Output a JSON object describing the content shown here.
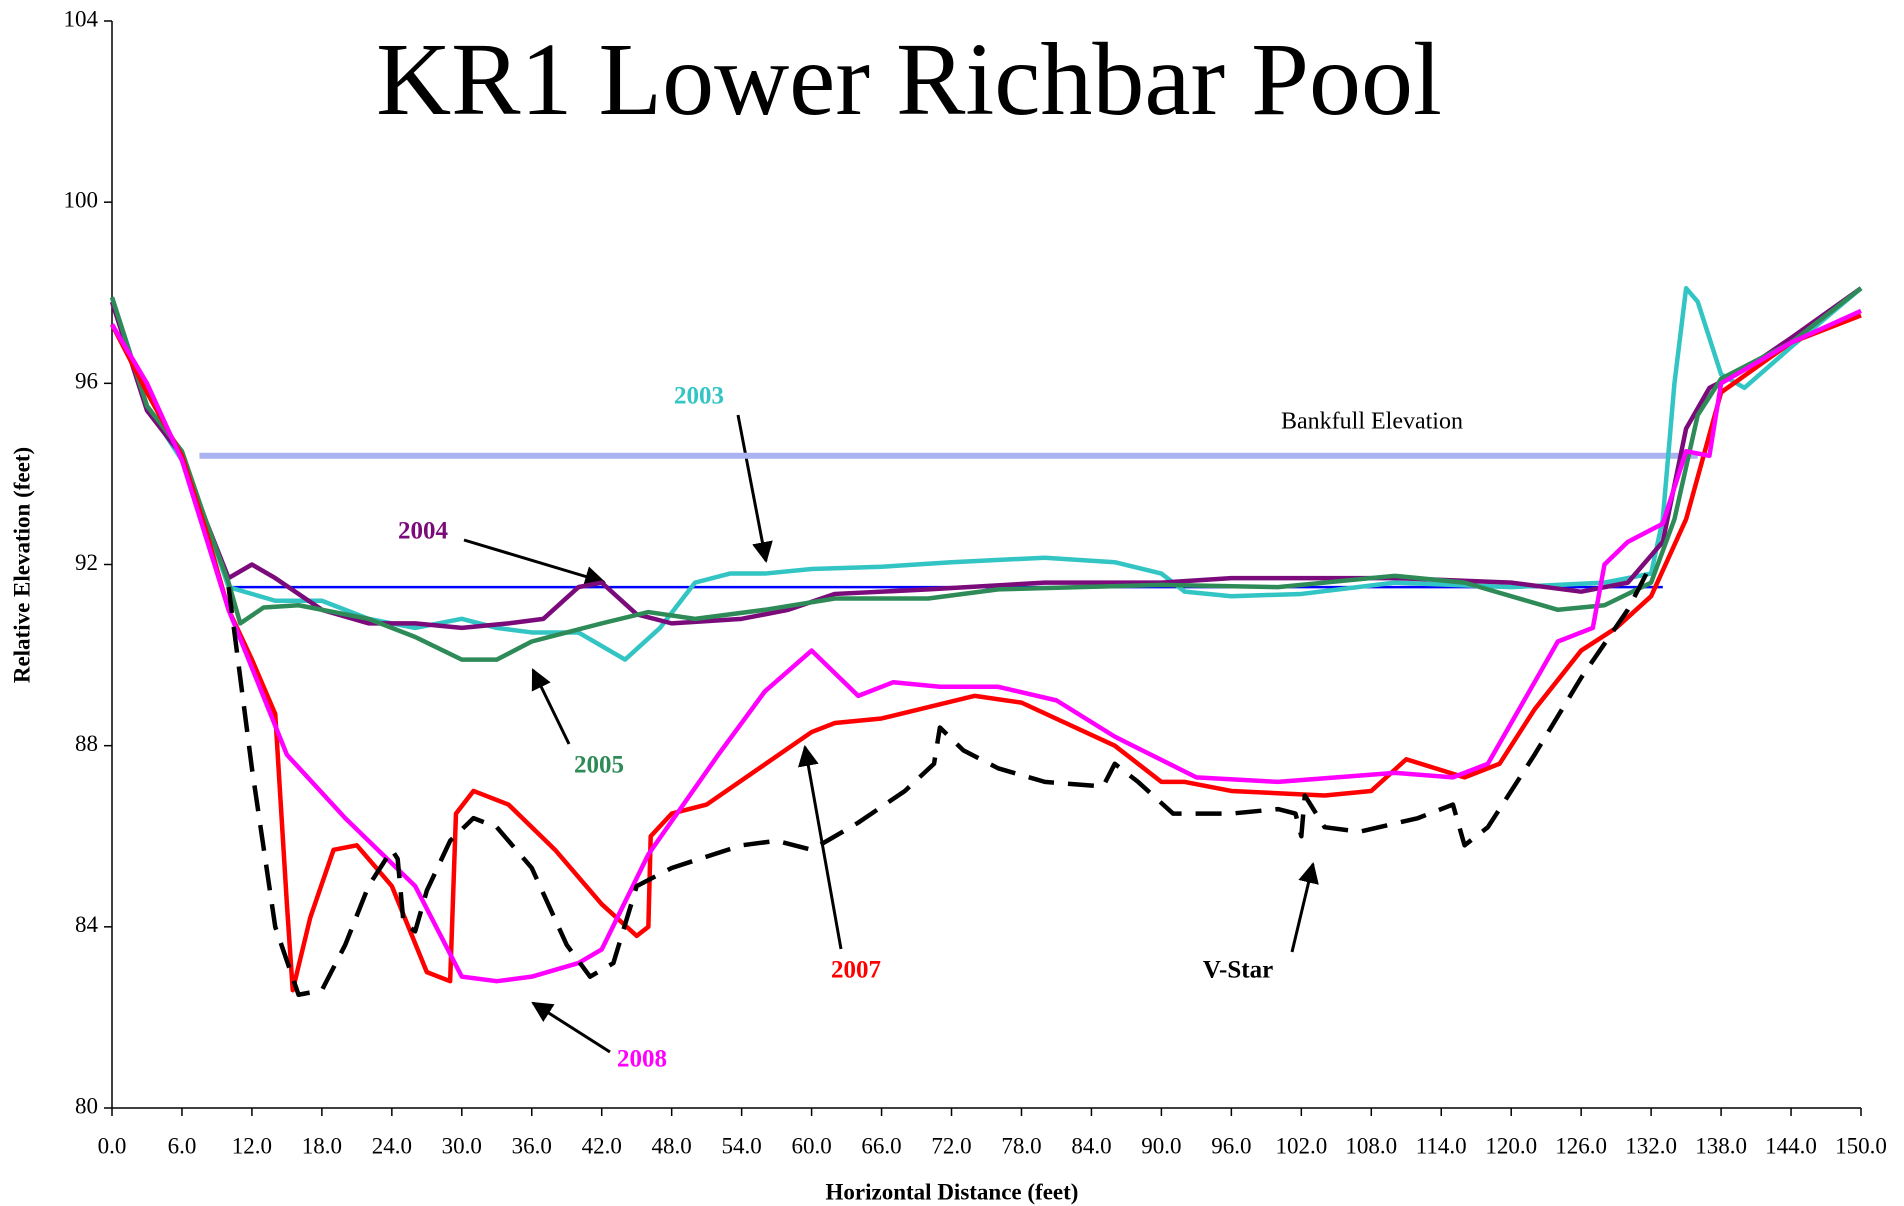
{
  "chart_data": {
    "type": "line",
    "title": "KR1 Lower Richbar Pool",
    "x_label": "Horizontal Distance (feet)",
    "y_label": "Relative Elevation (feet)",
    "xlim": [
      0,
      150
    ],
    "ylim": [
      80,
      104
    ],
    "xticks": [
      {
        "value": 0,
        "label": "0.0"
      },
      {
        "value": 6,
        "label": "6.0"
      },
      {
        "value": 12,
        "label": "12.0"
      },
      {
        "value": 18,
        "label": "18.0"
      },
      {
        "value": 24,
        "label": "24.0"
      },
      {
        "value": 30,
        "label": "30.0"
      },
      {
        "value": 36,
        "label": "36.0"
      },
      {
        "value": 42,
        "label": "42.0"
      },
      {
        "value": 48,
        "label": "48.0"
      },
      {
        "value": 54,
        "label": "54.0"
      },
      {
        "value": 60,
        "label": "60.0"
      },
      {
        "value": 66,
        "label": "66.0"
      },
      {
        "value": 72,
        "label": "72.0"
      },
      {
        "value": 78,
        "label": "78.0"
      },
      {
        "value": 84,
        "label": "84.0"
      },
      {
        "value": 90,
        "label": "90.0"
      },
      {
        "value": 96,
        "label": "96.0"
      },
      {
        "value": 102,
        "label": "102.0"
      },
      {
        "value": 108,
        "label": "108.0"
      },
      {
        "value": 114,
        "label": "114.0"
      },
      {
        "value": 120,
        "label": "120.0"
      },
      {
        "value": 126,
        "label": "126.0"
      },
      {
        "value": 132,
        "label": "132.0"
      },
      {
        "value": 138,
        "label": "138.0"
      },
      {
        "value": 144,
        "label": "144.0"
      },
      {
        "value": 150,
        "label": "150.0"
      }
    ],
    "yticks": [
      80,
      84,
      88,
      92,
      96,
      100,
      104
    ],
    "series": [
      {
        "name": "Bankfull Elevation",
        "color": "#aab2f0",
        "x": [
          7.5,
          136
        ],
        "values": [
          94.4,
          94.4
        ]
      },
      {
        "color": "#0000ff",
        "x": [
          10,
          133
        ],
        "values": [
          91.5,
          91.5
        ]
      },
      {
        "name": "2003",
        "color": "#33c4c4",
        "x": [
          0,
          3,
          6,
          8,
          10,
          14,
          18,
          22,
          26,
          30,
          33,
          36,
          40,
          44,
          47,
          50,
          53,
          56,
          60,
          66,
          72,
          80,
          86,
          90,
          92,
          96,
          102,
          110,
          120,
          128,
          132,
          133,
          134,
          135,
          136,
          138,
          140,
          144,
          150
        ],
        "values": [
          97.9,
          95.5,
          94.3,
          93,
          91.5,
          91.2,
          91.2,
          90.8,
          90.6,
          90.8,
          90.6,
          90.5,
          90.5,
          89.9,
          90.6,
          91.6,
          91.8,
          91.8,
          91.9,
          91.95,
          92.05,
          92.15,
          92.05,
          91.8,
          91.4,
          91.3,
          91.35,
          91.6,
          91.5,
          91.6,
          91.8,
          93,
          96,
          98.1,
          97.8,
          96.2,
          95.9,
          96.8,
          98.1
        ]
      },
      {
        "name": "2004",
        "color": "#7b0a7b",
        "x": [
          0,
          3,
          6,
          8,
          10,
          12,
          14,
          18,
          22,
          26,
          30,
          34,
          37,
          40,
          42,
          45,
          48,
          54,
          58,
          62,
          70,
          80,
          90,
          96,
          110,
          120,
          126,
          130,
          133,
          135,
          137,
          140,
          144,
          150
        ],
        "values": [
          97.8,
          95.4,
          94.4,
          93,
          91.7,
          92,
          91.7,
          91,
          90.7,
          90.7,
          90.6,
          90.7,
          90.8,
          91.5,
          91.6,
          90.9,
          90.7,
          90.8,
          91,
          91.35,
          91.45,
          91.6,
          91.6,
          91.7,
          91.7,
          91.6,
          91.4,
          91.6,
          92.5,
          95,
          95.9,
          96.3,
          97,
          98.1
        ]
      },
      {
        "name": "2005",
        "color": "#2e8b57",
        "x": [
          0,
          3,
          6,
          8,
          10,
          11,
          13,
          16,
          22,
          26,
          30,
          33,
          36,
          42,
          46,
          50,
          56,
          62,
          70,
          76,
          90,
          100,
          110,
          116,
          124,
          128,
          132,
          134,
          136,
          138,
          144,
          150
        ],
        "values": [
          97.9,
          95.5,
          94.5,
          93,
          91.6,
          90.7,
          91.05,
          91.1,
          90.8,
          90.4,
          89.9,
          89.9,
          90.3,
          90.7,
          90.95,
          90.8,
          91,
          91.25,
          91.25,
          91.45,
          91.55,
          91.5,
          91.75,
          91.6,
          91,
          91.1,
          91.6,
          93,
          95.3,
          96.1,
          96.9,
          98.1
        ]
      },
      {
        "name": "2007",
        "color": "#ff0000",
        "x": [
          0,
          3,
          6,
          8,
          10,
          12,
          14,
          15,
          15.5,
          17,
          19,
          21,
          24,
          27,
          29,
          29.5,
          31,
          34,
          38,
          42,
          45,
          46,
          46.2,
          48,
          51,
          60,
          62,
          66,
          74,
          78,
          86,
          90,
          92,
          96,
          104,
          108,
          111,
          116,
          119,
          122,
          126,
          129,
          132,
          135,
          138,
          144,
          150
        ],
        "values": [
          97.3,
          95.8,
          94.4,
          92.8,
          91,
          89.9,
          88.7,
          84.5,
          82.6,
          84.2,
          85.7,
          85.8,
          84.9,
          83,
          82.8,
          86.5,
          87,
          86.7,
          85.7,
          84.5,
          83.8,
          84,
          86,
          86.5,
          86.7,
          88.3,
          88.5,
          88.6,
          89.1,
          88.95,
          88,
          87.2,
          87.2,
          87,
          86.9,
          87,
          87.7,
          87.3,
          87.6,
          88.8,
          90.1,
          90.6,
          91.3,
          93,
          95.8,
          96.9,
          97.5
        ]
      },
      {
        "name": "2008",
        "color": "#ff00ff",
        "x": [
          0,
          3,
          6,
          10,
          15,
          20,
          26,
          30,
          33,
          36,
          40,
          42,
          46,
          52,
          56,
          60,
          64,
          67,
          71,
          76,
          81,
          86,
          93,
          100,
          110,
          115,
          118,
          124,
          127,
          128,
          130,
          133,
          135,
          137,
          137.5,
          138,
          144,
          150
        ],
        "values": [
          97.3,
          96,
          94.3,
          91,
          87.8,
          86.4,
          84.9,
          82.9,
          82.8,
          82.9,
          83.2,
          83.5,
          85.6,
          87.8,
          89.2,
          90.1,
          89.1,
          89.4,
          89.3,
          89.3,
          89,
          88.2,
          87.3,
          87.2,
          87.4,
          87.3,
          87.6,
          90.3,
          90.6,
          92,
          92.5,
          92.9,
          94.5,
          94.4,
          95.2,
          96,
          96.9,
          97.6
        ]
      },
      {
        "name": "V-Star",
        "color": "#000000",
        "dashed": true,
        "x": [
          10,
          12,
          14,
          16,
          18,
          20,
          22,
          24,
          24.5,
          25,
          26,
          27,
          29,
          31,
          33,
          36,
          39,
          41,
          43,
          45,
          48,
          54,
          57,
          60,
          64,
          68,
          70.5,
          71,
          73,
          76,
          80,
          85,
          86,
          88,
          91,
          96,
          100,
          101.5,
          102,
          102.3,
          104,
          107,
          112,
          115,
          116,
          118,
          122,
          126,
          130,
          132
        ],
        "values": [
          91.5,
          87.5,
          84,
          82.5,
          82.6,
          83.6,
          84.9,
          85.7,
          85.5,
          84.1,
          83.9,
          84.8,
          85.9,
          86.4,
          86.2,
          85.3,
          83.6,
          82.9,
          83.2,
          84.9,
          85.3,
          85.8,
          85.9,
          85.7,
          86.3,
          87,
          87.6,
          88.4,
          87.9,
          87.5,
          87.2,
          87.1,
          87.6,
          87.2,
          86.5,
          86.5,
          86.6,
          86.5,
          86,
          86.9,
          86.2,
          86.1,
          86.4,
          86.7,
          85.8,
          86.2,
          87.8,
          89.5,
          91,
          92
        ]
      }
    ]
  }
}
